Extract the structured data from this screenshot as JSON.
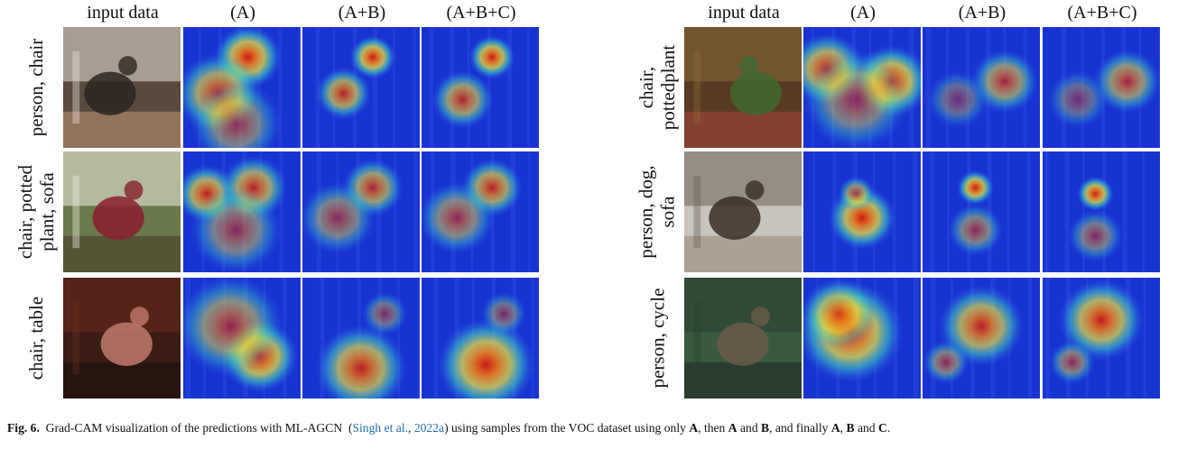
{
  "figure": {
    "left_panel": {
      "headers": [
        "input data",
        "(A)",
        "(A+B)",
        "(A+B+C)"
      ],
      "rows": [
        {
          "label_lines": [
            "person, chair"
          ]
        },
        {
          "label_lines": [
            "chair, potted",
            "plant, sofa"
          ]
        },
        {
          "label_lines": [
            "chair, table"
          ]
        }
      ]
    },
    "right_panel": {
      "headers": [
        "input data",
        "(A)",
        "(A+B)",
        "(A+B+C)"
      ],
      "rows": [
        {
          "label_lines": [
            "chair,",
            "pottedplant"
          ]
        },
        {
          "label_lines": [
            "person, dog,",
            "sofa"
          ]
        },
        {
          "label_lines": [
            "person, cycle"
          ]
        }
      ]
    }
  },
  "caption": {
    "fig_label": "Fig. 6.",
    "text_1": "Grad-CAM visualization of the predictions with ML-AGCN",
    "cite_author": "Singh et al.",
    "cite_sep": ",",
    "cite_year": "2022a",
    "text_2": "using samples from the VOC dataset using only",
    "bold_a1": "A",
    "text_3": ", then",
    "bold_a2": "A",
    "text_4": "and",
    "bold_b1": "B",
    "text_5": ", and finally",
    "bold_a3": "A",
    "text_6": ",",
    "bold_b2": "B",
    "text_7": "and",
    "bold_c": "C",
    "text_8": "."
  }
}
